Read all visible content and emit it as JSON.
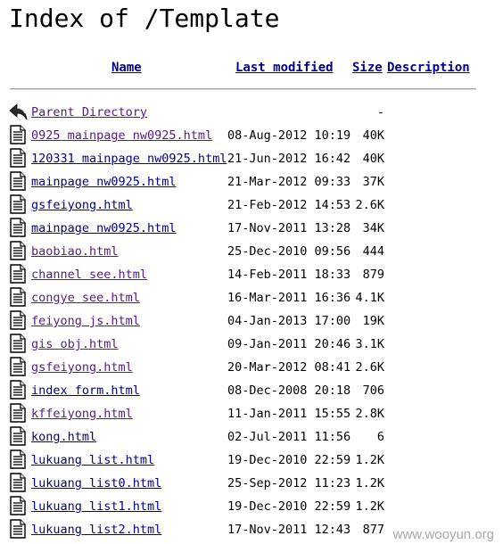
{
  "title": "Index of /Template",
  "columns": {
    "name": "Name",
    "last_modified": "Last modified",
    "size": "Size",
    "description": "Description"
  },
  "parent": {
    "label": "Parent Directory",
    "size": "-",
    "icon": "back-arrow-icon"
  },
  "files": [
    {
      "name": "0925 mainpage nw0925.html",
      "date": "08-Aug-2012 10:19",
      "size": "40K",
      "visited": true
    },
    {
      "name": "120331 mainpage nw0925.html",
      "date": "21-Jun-2012 16:42",
      "size": "40K",
      "visited": false
    },
    {
      "name": "  mainpage nw0925.html",
      "date": "21-Mar-2012 09:33",
      "size": "37K",
      "visited": false
    },
    {
      "name": " gsfeiyong.html",
      "date": "21-Feb-2012 14:53",
      "size": "2.6K",
      "visited": false
    },
    {
      "name": " mainpage nw0925.html",
      "date": "17-Nov-2011 13:28",
      "size": "34K",
      "visited": false
    },
    {
      "name": "baobiao.html",
      "date": "25-Dec-2010 09:56",
      "size": "444",
      "visited": true
    },
    {
      "name": "channel see.html",
      "date": "14-Feb-2011 18:33",
      "size": "879",
      "visited": true
    },
    {
      "name": "congye see.html",
      "date": "16-Mar-2011 16:36",
      "size": "4.1K",
      "visited": true
    },
    {
      "name": "feiyong js.html",
      "date": "04-Jan-2013 17:00",
      "size": "19K",
      "visited": true
    },
    {
      "name": "gis obj.html",
      "date": "09-Jan-2011 20:46",
      "size": "3.1K",
      "visited": true
    },
    {
      "name": "gsfeiyong.html",
      "date": "20-Mar-2012 08:41",
      "size": "2.6K",
      "visited": true
    },
    {
      "name": "index form.html",
      "date": "08-Dec-2008 20:18",
      "size": "706",
      "visited": false
    },
    {
      "name": "kffeiyong.html",
      "date": "11-Jan-2011 15:55",
      "size": "2.8K",
      "visited": true
    },
    {
      "name": "kong.html",
      "date": "02-Jul-2011 11:56",
      "size": "6",
      "visited": false
    },
    {
      "name": "lukuang list.html",
      "date": "19-Dec-2010 22:59",
      "size": "1.2K",
      "visited": false
    },
    {
      "name": "lukuang list0.html",
      "date": "25-Sep-2012 11:23",
      "size": "1.2K",
      "visited": false
    },
    {
      "name": "lukuang list1.html",
      "date": "19-Dec-2010 22:59",
      "size": "1.2K",
      "visited": false
    },
    {
      "name": "lukuang list2.html",
      "date": "17-Nov-2011 12:43",
      "size": "877",
      "visited": false
    }
  ],
  "file_icon": "document-icon",
  "watermark": "www.wooyun.org",
  "colors": {
    "link": "#00008b",
    "visited_link": "#551a8b",
    "background": "#ffffff"
  }
}
